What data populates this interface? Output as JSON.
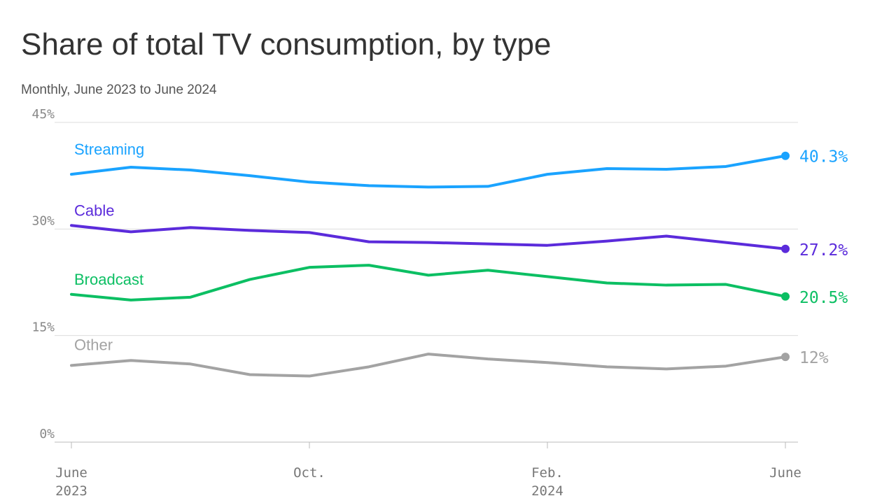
{
  "chart_data": {
    "type": "line",
    "title": "Share of total TV consumption, by type",
    "subtitle": "Monthly, June 2023 to June 2024",
    "categories": [
      "June 2023",
      null,
      null,
      null,
      "Oct.",
      null,
      null,
      null,
      "Feb. 2024",
      null,
      null,
      null,
      "June"
    ],
    "ylim": [
      0,
      45
    ],
    "yticks": [
      {
        "value": 0,
        "label": "0%"
      },
      {
        "value": 15,
        "label": "15%"
      },
      {
        "value": 30,
        "label": "30%"
      },
      {
        "value": 45,
        "label": "45%"
      }
    ],
    "grid": true,
    "series": [
      {
        "name": "Streaming",
        "color": "#1aa3ff",
        "values": [
          37.7,
          38.7,
          38.3,
          37.5,
          36.6,
          36.1,
          35.9,
          36.0,
          37.7,
          38.5,
          38.4,
          38.8,
          40.3
        ],
        "value_labels": [
          null,
          null,
          null,
          null,
          null,
          null,
          null,
          null,
          null,
          null,
          null,
          null,
          "40.3%"
        ]
      },
      {
        "name": "Cable",
        "color": "#5b2bdb",
        "values": [
          30.5,
          29.6,
          30.2,
          29.8,
          29.5,
          28.2,
          28.1,
          27.9,
          27.7,
          28.3,
          29.0,
          28.1,
          27.2
        ],
        "value_labels": [
          null,
          null,
          null,
          null,
          null,
          null,
          null,
          null,
          null,
          null,
          null,
          null,
          "27.2%"
        ]
      },
      {
        "name": "Broadcast",
        "color": "#0cbf63",
        "values": [
          20.8,
          20.0,
          20.4,
          22.9,
          24.6,
          24.9,
          23.5,
          24.2,
          23.3,
          22.4,
          22.1,
          22.2,
          20.5
        ],
        "value_labels": [
          null,
          null,
          null,
          null,
          null,
          null,
          null,
          null,
          null,
          null,
          null,
          null,
          "20.5%"
        ]
      },
      {
        "name": "Other",
        "color": "#a3a3a3",
        "values": [
          10.8,
          11.5,
          11.0,
          9.5,
          9.3,
          10.6,
          12.4,
          11.7,
          11.2,
          10.6,
          10.3,
          10.7,
          12.0
        ],
        "value_labels": [
          null,
          null,
          null,
          null,
          null,
          null,
          null,
          null,
          null,
          null,
          null,
          null,
          "12%"
        ]
      }
    ]
  }
}
